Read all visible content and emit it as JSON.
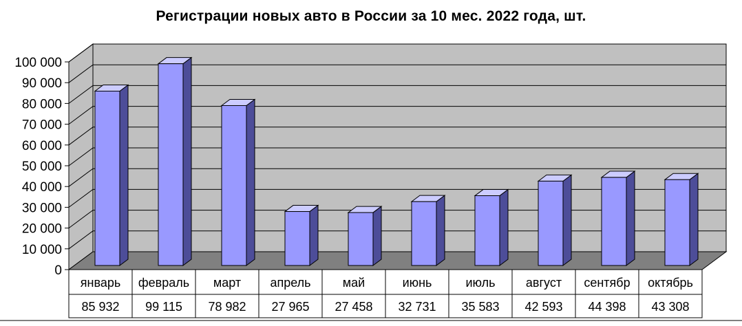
{
  "chart_data": {
    "type": "bar",
    "title": "Регистрации новых авто в России за 10 мес. 2022 года, шт.",
    "categories": [
      "январь",
      "февраль",
      "март",
      "апрель",
      "май",
      "июнь",
      "июль",
      "август",
      "сентябр",
      "октябрь"
    ],
    "values": [
      85932,
      99115,
      78982,
      27965,
      27458,
      32731,
      35583,
      42593,
      44398,
      43308
    ],
    "value_labels": [
      "85 932",
      "99 115",
      "78 982",
      "27 965",
      "27 458",
      "32 731",
      "35 583",
      "42 593",
      "44 398",
      "43 308"
    ],
    "y_ticks": [
      "0",
      "10 000",
      "20 000",
      "30 000",
      "40 000",
      "50 000",
      "60 000",
      "70 000",
      "80 000",
      "90 000",
      "100 000"
    ],
    "ylim": [
      0,
      100000
    ],
    "grid": true,
    "legend": "none",
    "style": "3d-column with data table",
    "colors": {
      "bar_front": "#9999ff",
      "bar_side": "#4d4d99",
      "bar_top": "#ccccff",
      "wall": "#c0c0c0",
      "floor": "#808080"
    }
  }
}
